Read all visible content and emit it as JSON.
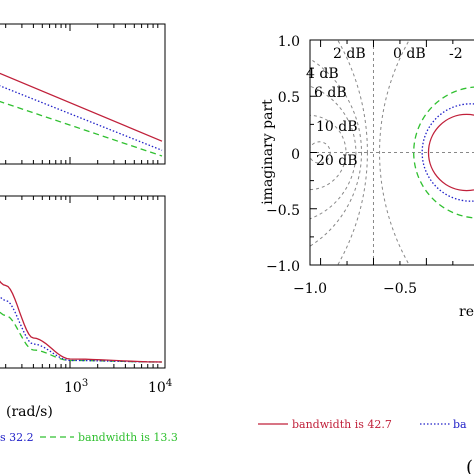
{
  "colors": {
    "red": "#c0203a",
    "blue": "#2020c8",
    "green": "#30c030",
    "grid": "#888888"
  },
  "chart_data": [
    {
      "type": "line",
      "panel": "magnitude (partial, left cropped)",
      "x_scale": "log",
      "xlim": [
        1,
        10000
      ],
      "grid": false,
      "series": [
        {
          "name": "bandwidth is 42.7",
          "color": "red",
          "style": "solid",
          "points": [
            [
              1,
              1.0
            ],
            [
              42.7,
              1.0
            ],
            [
              10000,
              0.2
            ]
          ]
        },
        {
          "name": "bandwidth is 32.2",
          "color": "blue",
          "style": "dotted",
          "points": [
            [
              1,
              0.92
            ],
            [
              32.2,
              0.92
            ],
            [
              10000,
              0.12
            ]
          ]
        },
        {
          "name": "bandwidth is 13.3",
          "color": "green",
          "style": "dashed",
          "points": [
            [
              1,
              0.85
            ],
            [
              13.3,
              0.85
            ],
            [
              10000,
              0.07
            ]
          ]
        }
      ]
    },
    {
      "type": "line",
      "panel": "bandwidth-limited response (partial, left cropped)",
      "x_scale": "log",
      "xlim": [
        1,
        10000
      ],
      "xticks": [
        "10",
        "3",
        "10",
        "4"
      ],
      "xlabel": "(rad/s)",
      "grid": false,
      "series": [
        {
          "name": "bandwidth is 42.7",
          "color": "red",
          "style": "solid",
          "points": [
            [
              1,
              0.9
            ],
            [
              100,
              0.78
            ],
            [
              200,
              0.55
            ],
            [
              400,
              0.2
            ],
            [
              1000,
              0.06
            ],
            [
              10000,
              0.04
            ]
          ]
        },
        {
          "name": "bandwidth is 32.2",
          "color": "blue",
          "style": "dotted",
          "points": [
            [
              1,
              0.75
            ],
            [
              100,
              0.68
            ],
            [
              200,
              0.45
            ],
            [
              400,
              0.16
            ],
            [
              1000,
              0.05
            ],
            [
              10000,
              0.04
            ]
          ]
        },
        {
          "name": "bandwidth is 13.3",
          "color": "green",
          "style": "dashed",
          "points": [
            [
              1,
              0.65
            ],
            [
              100,
              0.55
            ],
            [
              200,
              0.35
            ],
            [
              400,
              0.12
            ],
            [
              1000,
              0.05
            ],
            [
              10000,
              0.04
            ]
          ]
        }
      ]
    },
    {
      "type": "line",
      "panel": "Nichols / M-circles plot (partial, right cropped)",
      "xlim": [
        -1.1,
        0.45
      ],
      "ylim": [
        -1.0,
        1.0
      ],
      "xticks": [
        "−1.0",
        "−0.5"
      ],
      "yticks": [
        "1.0",
        "0.5",
        "0",
        "−0.5",
        "−1.0"
      ],
      "xlabel": "re",
      "ylabel": "imaginary part",
      "grid": true,
      "m_circle_labels": [
        "2 dB",
        "0 dB",
        "-2",
        "4 dB",
        "6 dB",
        "10 dB",
        "20 dB"
      ],
      "m_circles_db": [
        2,
        4,
        6,
        10,
        20,
        -2
      ],
      "series": [
        {
          "name": "bandwidth is 42.7",
          "color": "red",
          "style": "solid",
          "center": [
            0.38,
            0
          ],
          "radius": 0.36
        },
        {
          "name": "bandwidth is 32.2",
          "color": "blue",
          "style": "dotted",
          "center": [
            0.42,
            0
          ],
          "radius": 0.46
        },
        {
          "name": "bandwidth is 13.3",
          "color": "green",
          "style": "dashed",
          "center": [
            0.5,
            0
          ],
          "radius": 0.62
        }
      ]
    }
  ],
  "labels": {
    "bottom_xaxis": "(rad/s)",
    "tick_base": "10",
    "tick_exp_3": "3",
    "tick_exp_4": "4",
    "right_ylabel": "imaginary part",
    "right_xlabel": "re",
    "right_x_minus1": "−1.0",
    "right_x_minus05": "−0.5",
    "right_y_1": "1.0",
    "right_y_05": "0.5",
    "right_y_0": "0",
    "right_y_m05": "−0.5",
    "right_y_m1": "−1.0",
    "m_2db": "2 dB",
    "m_0db": "0 dB",
    "m_minus2": "-2",
    "m_4db": "4 dB",
    "m_6db": "6 dB",
    "m_10db": "10 dB",
    "m_20db": "20 dB",
    "legend_left_tail": "s 32.2",
    "legend_green": "bandwidth is 13.3",
    "legend_red": "bandwidth is 42.7",
    "legend_blue_tail": "ba",
    "panel_tag": "("
  }
}
